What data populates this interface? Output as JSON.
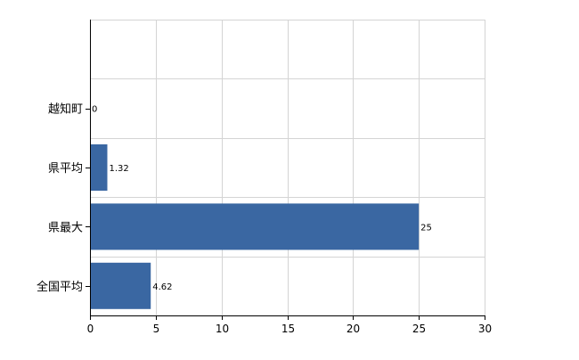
{
  "chart_data": {
    "type": "bar",
    "orientation": "horizontal",
    "categories": [
      "越知町",
      "県平均",
      "県最大",
      "全国平均"
    ],
    "values": [
      0,
      1.32,
      25,
      4.62
    ],
    "value_labels": [
      "0",
      "1.32",
      "25",
      "4.62"
    ],
    "xlim": [
      0,
      30
    ],
    "xticks": [
      0,
      5,
      10,
      15,
      20,
      25,
      30
    ],
    "xtick_labels": [
      "0",
      "5",
      "10",
      "15",
      "20",
      "25",
      "30"
    ],
    "grid": true,
    "legend": "none",
    "title": "",
    "xlabel": "",
    "ylabel": ""
  },
  "colors": {
    "bar": "#3a67a2",
    "grid": "#d4d4d4",
    "axis": "#000000"
  }
}
